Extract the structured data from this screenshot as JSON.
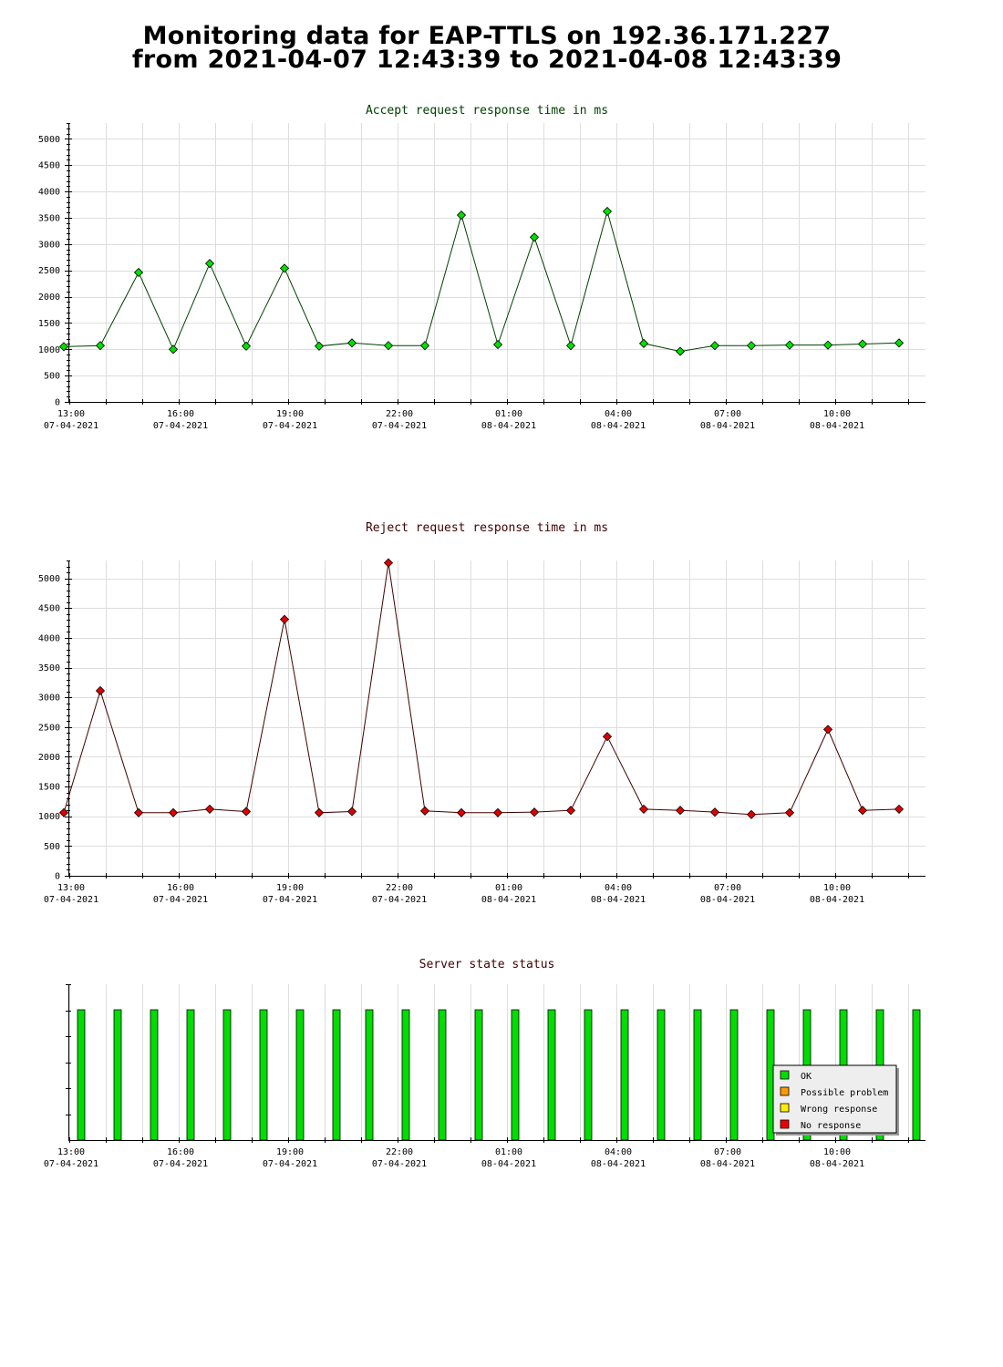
{
  "page": {
    "title_line1": "Monitoring data for EAP-TTLS on 192.36.171.227",
    "title_line2": "from 2021-04-07 12:43:39 to 2021-04-08 12:43:39"
  },
  "colors": {
    "accept_title": "#004000",
    "reject_title": "#400000",
    "accept_line": "#004000",
    "reject_line": "#400000",
    "accept_marker": "#00e000",
    "reject_marker": "#e00000",
    "ok": "#00dd00",
    "possible_problem": "#ff9900",
    "wrong_response": "#ffee00",
    "no_response": "#ee0000"
  },
  "x_ticks": [
    {
      "time": "13:00",
      "date": "07-04-2021"
    },
    {
      "time": "16:00",
      "date": "07-04-2021"
    },
    {
      "time": "19:00",
      "date": "07-04-2021"
    },
    {
      "time": "22:00",
      "date": "07-04-2021"
    },
    {
      "time": "01:00",
      "date": "08-04-2021"
    },
    {
      "time": "04:00",
      "date": "08-04-2021"
    },
    {
      "time": "07:00",
      "date": "08-04-2021"
    },
    {
      "time": "10:00",
      "date": "08-04-2021"
    }
  ],
  "chart_data": [
    {
      "type": "line",
      "title": "Accept request response time in ms",
      "x_unit": "hours after 13:00 07-04-2021",
      "xlim": [
        0,
        23.5
      ],
      "ylim": [
        0,
        5300
      ],
      "y_ticks": [
        0,
        500,
        1000,
        1500,
        2000,
        2500,
        3000,
        3500,
        4000,
        4500,
        5000
      ],
      "grid": true,
      "series": [
        {
          "x": [
            -0.2,
            0.8,
            1.85,
            2.8,
            3.8,
            4.8,
            5.85,
            6.8,
            7.7,
            8.7,
            9.7,
            10.7,
            11.7,
            12.7,
            13.7,
            14.7,
            15.7,
            16.7,
            17.65,
            18.65,
            19.7,
            20.75,
            21.7,
            22.7
          ],
          "values": [
            1050,
            1070,
            2460,
            1000,
            2630,
            1060,
            2540,
            1060,
            1120,
            1070,
            1070,
            3550,
            1090,
            3130,
            1070,
            3620,
            1110,
            960,
            1070,
            1070,
            1080,
            1080,
            1100,
            1120
          ]
        }
      ]
    },
    {
      "type": "line",
      "title": "Reject request response time in ms",
      "x_unit": "hours after 13:00 07-04-2021",
      "xlim": [
        0,
        23.5
      ],
      "ylim": [
        0,
        5300
      ],
      "y_ticks": [
        0,
        500,
        1000,
        1500,
        2000,
        2500,
        3000,
        3500,
        4000,
        4500,
        5000
      ],
      "grid": true,
      "series": [
        {
          "x": [
            -0.2,
            0.8,
            1.85,
            2.8,
            3.8,
            4.8,
            5.85,
            6.8,
            7.7,
            8.7,
            9.7,
            10.7,
            11.7,
            12.7,
            13.7,
            14.7,
            15.7,
            16.7,
            17.65,
            18.65,
            19.7,
            20.75,
            21.7,
            22.7
          ],
          "values": [
            1060,
            3110,
            1060,
            1060,
            1120,
            1080,
            4310,
            1060,
            1080,
            5260,
            1090,
            1060,
            1060,
            1070,
            1100,
            2340,
            1120,
            1100,
            1070,
            1030,
            1060,
            2460,
            1100,
            1120
          ]
        }
      ]
    },
    {
      "type": "bar",
      "title": "Server state status",
      "x_unit": "hours after 13:00 07-04-2021",
      "xlim": [
        0,
        23.5
      ],
      "x": [
        0.35,
        1.35,
        2.35,
        3.35,
        4.35,
        5.35,
        6.35,
        7.35,
        8.25,
        9.25,
        10.25,
        11.25,
        12.25,
        13.25,
        14.25,
        15.25,
        16.25,
        17.25,
        18.25,
        19.25,
        20.25,
        21.25,
        22.25,
        23.25
      ],
      "states": [
        "OK",
        "OK",
        "OK",
        "OK",
        "OK",
        "OK",
        "OK",
        "OK",
        "OK",
        "OK",
        "OK",
        "OK",
        "OK",
        "OK",
        "OK",
        "OK",
        "OK",
        "OK",
        "OK",
        "OK",
        "OK",
        "OK",
        "OK",
        "OK"
      ],
      "legend": [
        "OK",
        "Possible problem",
        "Wrong response",
        "No response"
      ],
      "legend_position": "bottom-right"
    }
  ]
}
